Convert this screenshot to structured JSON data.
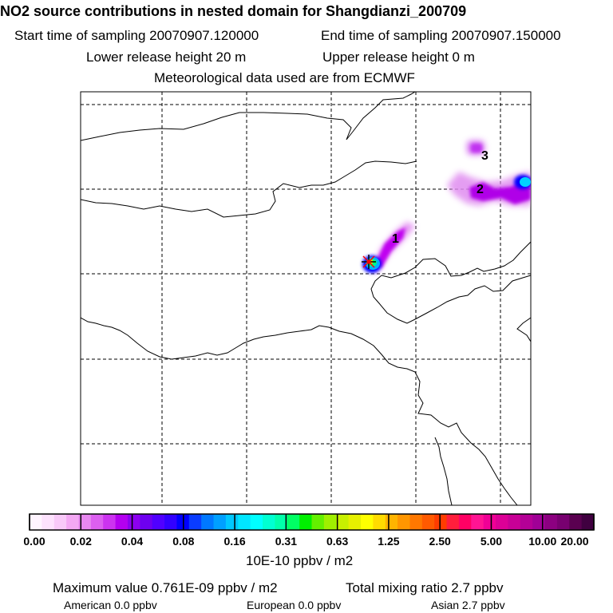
{
  "title": "NO2 source contributions in nested domain for Shangdianzi_200709",
  "sampling": {
    "start": "Start time of sampling 20070907.120000",
    "end": "End time of sampling 20070907.150000"
  },
  "release": {
    "lower": "Lower release height   20 m",
    "upper": "Upper release height    0 m"
  },
  "meteo": "Meteorological data used are from ECMWF",
  "map_labels": [
    "1",
    "2",
    "3"
  ],
  "colorbar": {
    "ticks": [
      "0.00",
      "0.02",
      "0.04",
      "0.08",
      "0.16",
      "0.31",
      "0.63",
      "1.25",
      "2.50",
      "5.00",
      "10.00",
      "20.00"
    ],
    "unit": "10E-10 ppbv / m2",
    "colors": [
      "#fff4ff",
      "#fde2fd",
      "#f8c9f8",
      "#f3a8f3",
      "#e888f0",
      "#dc5ff0",
      "#cc33f0",
      "#b400f0",
      "#8c00f0",
      "#6e00f0",
      "#5000ff",
      "#3200ff",
      "#0000ff",
      "#0a3cff",
      "#0078ff",
      "#00a0ff",
      "#00c8ff",
      "#00e6ff",
      "#00ffff",
      "#00ffd2",
      "#00ffaa",
      "#00ff64",
      "#00f000",
      "#64f000",
      "#a0f000",
      "#c8f000",
      "#e6f000",
      "#ffff00",
      "#ffdc00",
      "#ffb400",
      "#ff9600",
      "#ff7800",
      "#ff5a00",
      "#ff3c00",
      "#ff1e3c",
      "#ff0064",
      "#ff1493",
      "#f00096",
      "#dc0096",
      "#c80096",
      "#b40096",
      "#a00096",
      "#8c0080",
      "#780070",
      "#5a0050",
      "#400040"
    ]
  },
  "footer": {
    "max_value": "Maximum value  0.761E-09 ppbv / m2",
    "total_mixing": "Total mixing ratio       2.7 ppbv",
    "american": "American       0.0 ppbv",
    "european": "European       0.0 ppbv",
    "asian": "Asian      2.7 ppbv"
  }
}
